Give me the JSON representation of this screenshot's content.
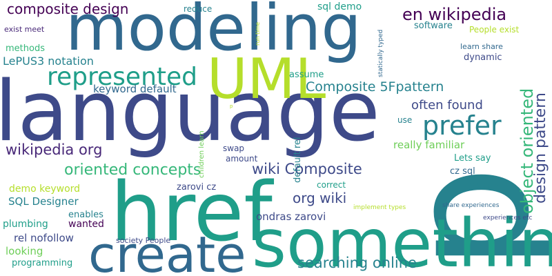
{
  "colors": {
    "background": "#ffffff",
    "palette": [
      "#440154",
      "#482878",
      "#3e4a89",
      "#31688e",
      "#26828e",
      "#1f9e89",
      "#35b779",
      "#6ece58",
      "#b5de2b",
      "#fde725"
    ]
  },
  "words": {
    "w_p": "p",
    "w_language": "language",
    "w_modeling": "modeling",
    "w_href": "href",
    "w_something": "something",
    "w_create": "create",
    "w_uml": "UML",
    "w_represented": "represented",
    "w_prefer": "prefer",
    "w_composite_design": "composite design",
    "w_en_wikipedia": "en wikipedia",
    "w_object_oriented": "object oriented",
    "w_design_pattern": "design pattern",
    "w_composite_5fpattern": "Composite 5Fpattern",
    "w_oriented_concepts": "oriented concepts",
    "w_wikipedia_org": "wikipedia org",
    "w_wiki_composite": "wiki Composite",
    "w_searching_online": "searching online",
    "w_org_wiki": "org wiki",
    "w_often_found": "often found",
    "w_lepus3": "LePUS3 notation",
    "w_sql_designer": "SQL Designer",
    "w_keyword_default": "keyword default",
    "w_sql_demo": "sql demo",
    "w_reduce": "reduce",
    "w_exist_meet": "exist meet",
    "w_methods": "methods",
    "w_software": "software",
    "w_people_exist": "People exist",
    "w_learn_share": "learn share",
    "w_dynamic": "dynamic",
    "w_assume": "assume",
    "w_really_familiar": "really familiar",
    "w_lets_say": "Lets say",
    "w_cz_sql": "cz sql",
    "w_use": "use",
    "w_swap": "swap",
    "w_amount": "amount",
    "w_default_rel": "default rel",
    "w_zarovi_cz": "zarovi cz",
    "w_correct": "correct",
    "w_models": "models",
    "w_demo_keyword": "demo keyword",
    "w_enables": "enables",
    "w_plumbing": "plumbing",
    "w_wanted": "wanted",
    "w_ondras_zarovi": "ondras zarovi",
    "w_rel_nofollow": "rel nofollow",
    "w_looking": "looking",
    "w_society_people": "society People",
    "w_programming": "programming",
    "w_children_learn": "children learn",
    "w_run_time": "run time",
    "w_statically_typed": "statically typed",
    "w_implement_types": "implement types",
    "w_share_experiences": "share experiences",
    "w_experiences_etc": "experiences etc",
    "w_small_p": "p"
  }
}
